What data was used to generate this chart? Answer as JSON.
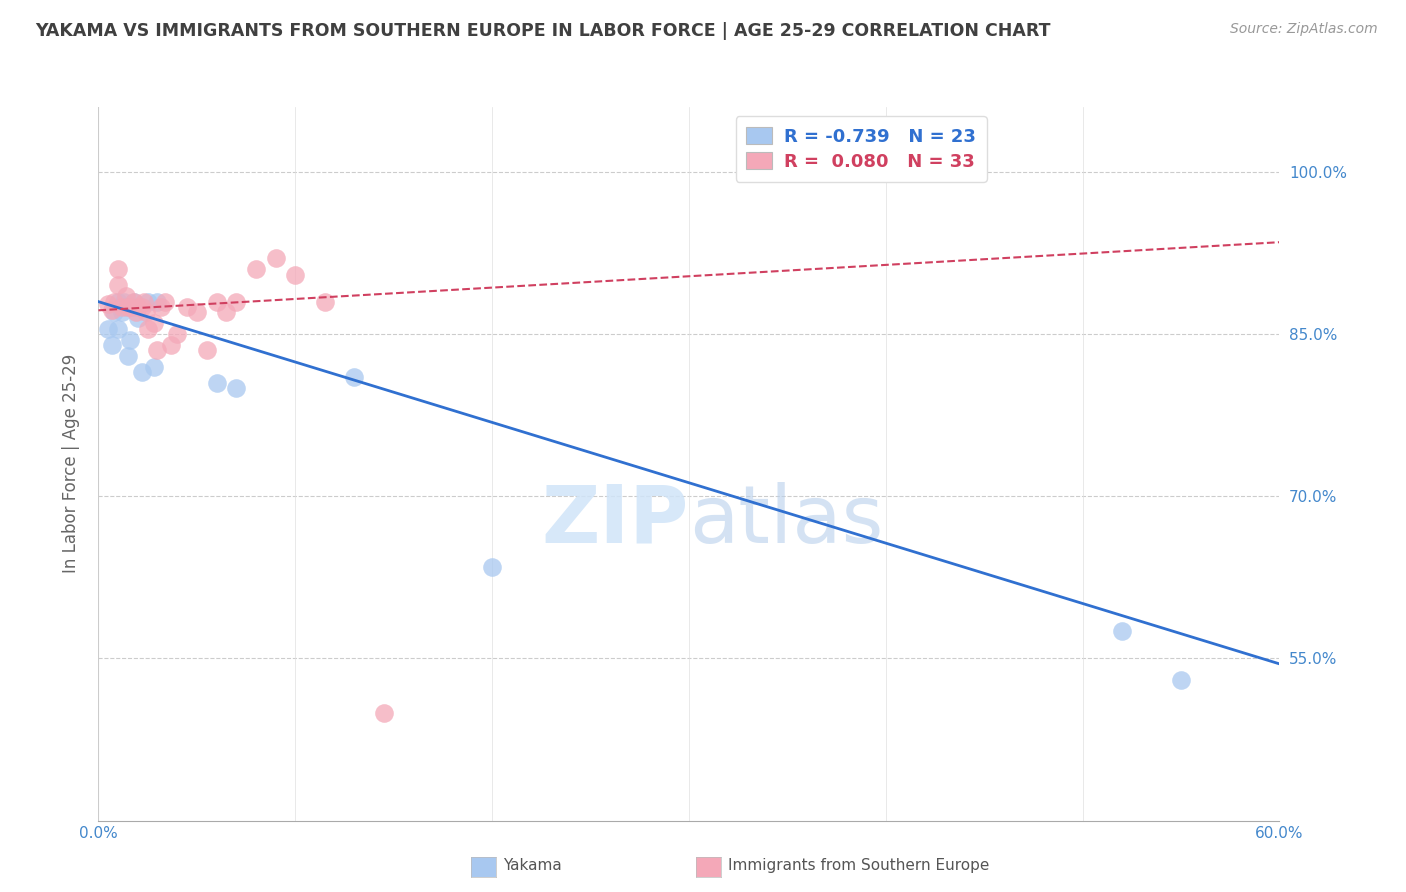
{
  "title": "YAKAMA VS IMMIGRANTS FROM SOUTHERN EUROPE IN LABOR FORCE | AGE 25-29 CORRELATION CHART",
  "source_text": "Source: ZipAtlas.com",
  "ylabel": "In Labor Force | Age 25-29",
  "x_min": 0.0,
  "x_max": 0.6,
  "y_min": 0.4,
  "y_max": 1.06,
  "y_ticks": [
    0.55,
    0.7,
    0.85,
    1.0
  ],
  "y_tick_labels": [
    "55.0%",
    "70.0%",
    "85.0%",
    "100.0%"
  ],
  "x_ticks": [
    0.0,
    0.1,
    0.2,
    0.3,
    0.4,
    0.5,
    0.6
  ],
  "x_tick_labels": [
    "0.0%",
    "",
    "",
    "",
    "",
    "",
    "60.0%"
  ],
  "legend_r_yakama": "-0.739",
  "legend_n_yakama": "23",
  "legend_r_immigrants": "0.080",
  "legend_n_immigrants": "33",
  "yakama_color": "#A8C8F0",
  "immigrants_color": "#F4A8B8",
  "trend_yakama_color": "#3070D0",
  "trend_immigrants_color": "#D04060",
  "background_color": "#FFFFFF",
  "grid_color": "#CCCCCC",
  "title_color": "#404040",
  "axis_label_color": "#4488CC",
  "watermark_color": "#D0E4F8",
  "yakama_x": [
    0.005,
    0.007,
    0.008,
    0.01,
    0.01,
    0.012,
    0.013,
    0.014,
    0.015,
    0.016,
    0.017,
    0.018,
    0.02,
    0.022,
    0.025,
    0.028,
    0.03,
    0.06,
    0.07,
    0.13,
    0.2,
    0.52,
    0.55
  ],
  "yakama_y": [
    0.855,
    0.84,
    0.87,
    0.88,
    0.855,
    0.87,
    0.88,
    0.875,
    0.83,
    0.845,
    0.875,
    0.88,
    0.865,
    0.815,
    0.88,
    0.82,
    0.88,
    0.805,
    0.8,
    0.81,
    0.635,
    0.575,
    0.53
  ],
  "immigrants_x": [
    0.005,
    0.007,
    0.008,
    0.01,
    0.01,
    0.012,
    0.014,
    0.015,
    0.016,
    0.018,
    0.019,
    0.02,
    0.022,
    0.023,
    0.024,
    0.025,
    0.028,
    0.03,
    0.032,
    0.034,
    0.037,
    0.04,
    0.045,
    0.05,
    0.055,
    0.06,
    0.065,
    0.07,
    0.08,
    0.09,
    0.1,
    0.115,
    0.145
  ],
  "immigrants_y": [
    0.878,
    0.872,
    0.88,
    0.91,
    0.895,
    0.875,
    0.885,
    0.875,
    0.875,
    0.88,
    0.87,
    0.875,
    0.875,
    0.88,
    0.87,
    0.855,
    0.86,
    0.835,
    0.875,
    0.88,
    0.84,
    0.85,
    0.875,
    0.87,
    0.835,
    0.88,
    0.87,
    0.88,
    0.91,
    0.92,
    0.905,
    0.88,
    0.5
  ],
  "blue_trend_x0": 0.0,
  "blue_trend_y0": 0.88,
  "blue_trend_x1": 0.6,
  "blue_trend_y1": 0.545,
  "pink_trend_x0": 0.0,
  "pink_trend_y0": 0.872,
  "pink_trend_x1": 0.6,
  "pink_trend_y1": 0.935
}
